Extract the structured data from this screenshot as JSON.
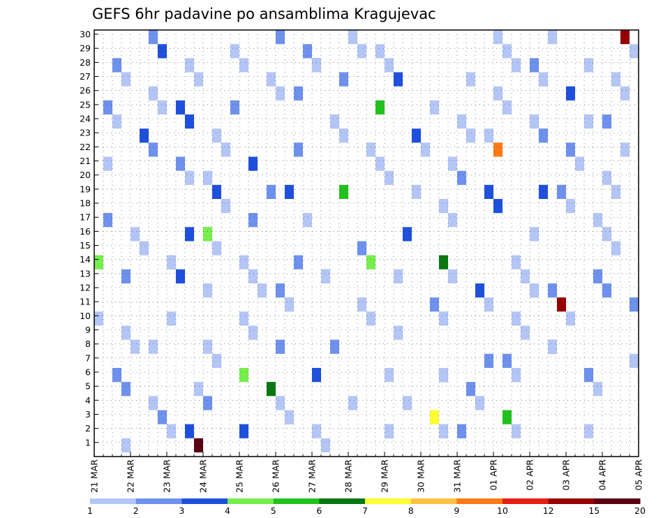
{
  "chart_data": {
    "type": "heatmap",
    "title": "GEFS 6hr padavine po ansamblima Kragujevac",
    "xlabel": "",
    "ylabel": "",
    "x_ticks": [
      "21 MAR",
      "22 MAR",
      "23 MAR",
      "24 MAR",
      "25 MAR",
      "26 MAR",
      "27 MAR",
      "28 MAR",
      "29 MAR",
      "30 MAR",
      "31 MAR",
      "01 APR",
      "02 APR",
      "03 APR",
      "04 APR",
      "05 APR"
    ],
    "y_ticks": [
      "1",
      "2",
      "3",
      "4",
      "5",
      "6",
      "7",
      "8",
      "9",
      "10",
      "11",
      "12",
      "13",
      "14",
      "15",
      "16",
      "17",
      "18",
      "19",
      "20",
      "21",
      "22",
      "23",
      "24",
      "25",
      "26",
      "27",
      "28",
      "29",
      "30"
    ],
    "x_range": [
      "21 MAR 00Z",
      "05 APR 00Z"
    ],
    "x_step": "6hr",
    "y_range": [
      0,
      30
    ],
    "grid": true,
    "colorbar": {
      "labels": [
        "1",
        "2",
        "3",
        "4",
        "5",
        "6",
        "7",
        "8",
        "9",
        "10",
        "12",
        "15",
        "20"
      ],
      "colors": [
        "#b4c6f6",
        "#6e91ee",
        "#1e50dc",
        "#76ee4c",
        "#22c21e",
        "#0a7812",
        "#ffff32",
        "#ffc142",
        "#ff7a14",
        "#e61e14",
        "#960000",
        "#5a0014"
      ]
    },
    "cells": [
      [
        1,
        9,
        1
      ],
      [
        1,
        27,
        1
      ],
      [
        2,
        10,
        1
      ],
      [
        2,
        12,
        2
      ],
      [
        2,
        13,
        2
      ],
      [
        2,
        15,
        1
      ],
      [
        2,
        18,
        5
      ],
      [
        2,
        19,
        1
      ],
      [
        2,
        20,
        2
      ],
      [
        2,
        22,
        1
      ],
      [
        2,
        28,
        2
      ],
      [
        2,
        29,
        2
      ],
      [
        2,
        31,
        1
      ],
      [
        2,
        32,
        2
      ],
      [
        2,
        38,
        1
      ],
      [
        2,
        40,
        1
      ],
      [
        2,
        45,
        3
      ],
      [
        2,
        50,
        2
      ],
      [
        2,
        51,
        2
      ],
      [
        2,
        52,
        3
      ],
      [
        2,
        53,
        3
      ],
      [
        2,
        55,
        1
      ],
      [
        2,
        56,
        1
      ],
      [
        2,
        57,
        2
      ],
      [
        2,
        58,
        3
      ],
      [
        2,
        60,
        1
      ],
      [
        2,
        61,
        1
      ],
      [
        2,
        62,
        2
      ],
      [
        2,
        66,
        2
      ],
      [
        2,
        67,
        1
      ],
      [
        2,
        68,
        2
      ],
      [
        2,
        69,
        3
      ],
      [
        2,
        72,
        1
      ],
      [
        2,
        74,
        1
      ],
      [
        2,
        75,
        2
      ],
      [
        2,
        78,
        4
      ],
      [
        2,
        79,
        6
      ],
      [
        2,
        80,
        1
      ],
      [
        2,
        81,
        1
      ],
      [
        2,
        82,
        2
      ],
      [
        3,
        16,
        1
      ],
      [
        3,
        17,
        2
      ],
      [
        3,
        19,
        2
      ],
      [
        3,
        22,
        3
      ],
      [
        3,
        23,
        3
      ],
      [
        3,
        24,
        1
      ],
      [
        3,
        25,
        1
      ],
      [
        3,
        26,
        1
      ],
      [
        3,
        28,
        5
      ],
      [
        3,
        29,
        5
      ],
      [
        3,
        31,
        1
      ],
      [
        3,
        37,
        1
      ],
      [
        3,
        38,
        3
      ],
      [
        3,
        39,
        3
      ],
      [
        3,
        41,
        1
      ],
      [
        3,
        42,
        1
      ],
      [
        3,
        43,
        1
      ],
      [
        3,
        44,
        2
      ],
      [
        3,
        45,
        3
      ],
      [
        3,
        46,
        5
      ],
      [
        3,
        47,
        6
      ],
      [
        3,
        48,
        5
      ],
      [
        3,
        49,
        2
      ],
      [
        3,
        50,
        2
      ],
      [
        3,
        51,
        2
      ],
      [
        3,
        52,
        3
      ],
      [
        3,
        53,
        2
      ],
      [
        3,
        54,
        2
      ],
      [
        3,
        55,
        3
      ],
      [
        3,
        56,
        2
      ],
      [
        3,
        57,
        1
      ],
      [
        3,
        58,
        2
      ],
      [
        3,
        60,
        2
      ],
      [
        3,
        61,
        1
      ],
      [
        3,
        62,
        2
      ],
      [
        3,
        65,
        1
      ],
      [
        3,
        68,
        3
      ],
      [
        3,
        69,
        1
      ],
      [
        3,
        72,
        1
      ],
      [
        3,
        75,
        2
      ],
      [
        3,
        76,
        2
      ],
      [
        3,
        77,
        1
      ],
      [
        3,
        80,
        1
      ],
      [
        3,
        83,
        1
      ],
      [
        3,
        84,
        1
      ],
      [
        3,
        88,
        1
      ],
      [
        3,
        89,
        1
      ],
      [
        3,
        90,
        1
      ],
      [
        4,
        7,
        1
      ],
      [
        4,
        8,
        1
      ],
      [
        4,
        9,
        1
      ],
      [
        4,
        17,
        12
      ],
      [
        4,
        20,
        1
      ],
      [
        4,
        22,
        1
      ],
      [
        4,
        24,
        4
      ],
      [
        4,
        25,
        2
      ],
      [
        4,
        27,
        4
      ],
      [
        4,
        28,
        1
      ],
      [
        4,
        29,
        1
      ],
      [
        4,
        31,
        2
      ],
      [
        4,
        32,
        2
      ],
      [
        4,
        33,
        2
      ],
      [
        4,
        34,
        3
      ],
      [
        4,
        35,
        4
      ],
      [
        4,
        38,
        1
      ],
      [
        4,
        42,
        4
      ],
      [
        4,
        45,
        1
      ],
      [
        4,
        50,
        2
      ],
      [
        4,
        52,
        4
      ],
      [
        4,
        54,
        4
      ],
      [
        4,
        55,
        7
      ],
      [
        4,
        56,
        9
      ],
      [
        4,
        57,
        11
      ],
      [
        4,
        58,
        11
      ],
      [
        4,
        60,
        1
      ],
      [
        4,
        61,
        1
      ],
      [
        4,
        64,
        1
      ],
      [
        4,
        65,
        1
      ],
      [
        4,
        66,
        1
      ],
      [
        4,
        81,
        1
      ],
      [
        4,
        82,
        1
      ],
      [
        4,
        86,
        1
      ],
      [
        4,
        87,
        1
      ],
      [
        4,
        91,
        1
      ],
      [
        4,
        92,
        1
      ],
      [
        4,
        95,
        1
      ],
      [
        4,
        96,
        1
      ],
      [
        4,
        97,
        1
      ],
      [
        4,
        98,
        1
      ],
      [
        4,
        99,
        1
      ],
      [
        4,
        100,
        1
      ],
      [
        4,
        101,
        1
      ],
      [
        4,
        102,
        1
      ],
      [
        4,
        103,
        1
      ],
      [
        4,
        104,
        1
      ],
      [
        4,
        105,
        1
      ],
      [
        5,
        8,
        1
      ],
      [
        5,
        21,
        1
      ],
      [
        5,
        22,
        1
      ],
      [
        5,
        23,
        1
      ],
      [
        5,
        25,
        7
      ],
      [
        5,
        26,
        8
      ],
      [
        5,
        27,
        3
      ],
      [
        5,
        29,
        6
      ],
      [
        5,
        33,
        2
      ],
      [
        5,
        35,
        2
      ],
      [
        5,
        36,
        5
      ],
      [
        5,
        38,
        1
      ],
      [
        5,
        39,
        1
      ],
      [
        5,
        40,
        1
      ],
      [
        5,
        41,
        1
      ],
      [
        5,
        42,
        3
      ],
      [
        5,
        43,
        3
      ],
      [
        5,
        45,
        1
      ],
      [
        5,
        47,
        3
      ],
      [
        5,
        49,
        1
      ],
      [
        5,
        50,
        1
      ],
      [
        5,
        51,
        2
      ],
      [
        5,
        55,
        2
      ],
      [
        5,
        56,
        1
      ],
      [
        5,
        57,
        1
      ],
      [
        5,
        58,
        2
      ],
      [
        5,
        60,
        2
      ],
      [
        5,
        61,
        2
      ],
      [
        5,
        63,
        1
      ],
      [
        5,
        64,
        1
      ],
      [
        5,
        65,
        1
      ],
      [
        5,
        66,
        1
      ],
      [
        5,
        67,
        1
      ],
      [
        5,
        68,
        1
      ],
      [
        5,
        72,
        1
      ],
      [
        5,
        73,
        1
      ],
      [
        5,
        74,
        1
      ],
      [
        5,
        75,
        1
      ],
      [
        5,
        76,
        3
      ],
      [
        5,
        77,
        1
      ],
      [
        5,
        81,
        1
      ],
      [
        5,
        82,
        2
      ],
      [
        5,
        83,
        2
      ],
      [
        5,
        84,
        1
      ],
      [
        5,
        85,
        1
      ],
      [
        5,
        86,
        1
      ],
      [
        5,
        87,
        1
      ],
      [
        5,
        89,
        1
      ],
      [
        5,
        90,
        1
      ],
      [
        6,
        9,
        2
      ],
      [
        6,
        13,
        1
      ],
      [
        6,
        15,
        1
      ],
      [
        6,
        16,
        1
      ],
      [
        6,
        20,
        1
      ],
      [
        6,
        22,
        1
      ],
      [
        6,
        23,
        1
      ],
      [
        6,
        26,
        1
      ],
      [
        6,
        28,
        1
      ],
      [
        6,
        29,
        1
      ],
      [
        6,
        30,
        1
      ],
      [
        6,
        34,
        1
      ],
      [
        6,
        35,
        1
      ],
      [
        6,
        37,
        1
      ],
      [
        6,
        40,
        1
      ],
      [
        6,
        43,
        2
      ],
      [
        6,
        44,
        2
      ],
      [
        6,
        45,
        3
      ],
      [
        6,
        48,
        1
      ],
      [
        6,
        50,
        1
      ],
      [
        6,
        53,
        1
      ],
      [
        6,
        55,
        2
      ],
      [
        6,
        57,
        1
      ],
      [
        6,
        60,
        1
      ],
      [
        6,
        61,
        1
      ],
      [
        6,
        62,
        1
      ],
      [
        6,
        64,
        1
      ],
      [
        6,
        67,
        1
      ],
      [
        6,
        69,
        1
      ],
      [
        6,
        73,
        3
      ],
      [
        6,
        76,
        3
      ],
      [
        6,
        80,
        1
      ],
      [
        6,
        82,
        1
      ],
      [
        6,
        85,
        1
      ],
      [
        6,
        89,
        1
      ],
      [
        6,
        90,
        1
      ]
    ]
  }
}
